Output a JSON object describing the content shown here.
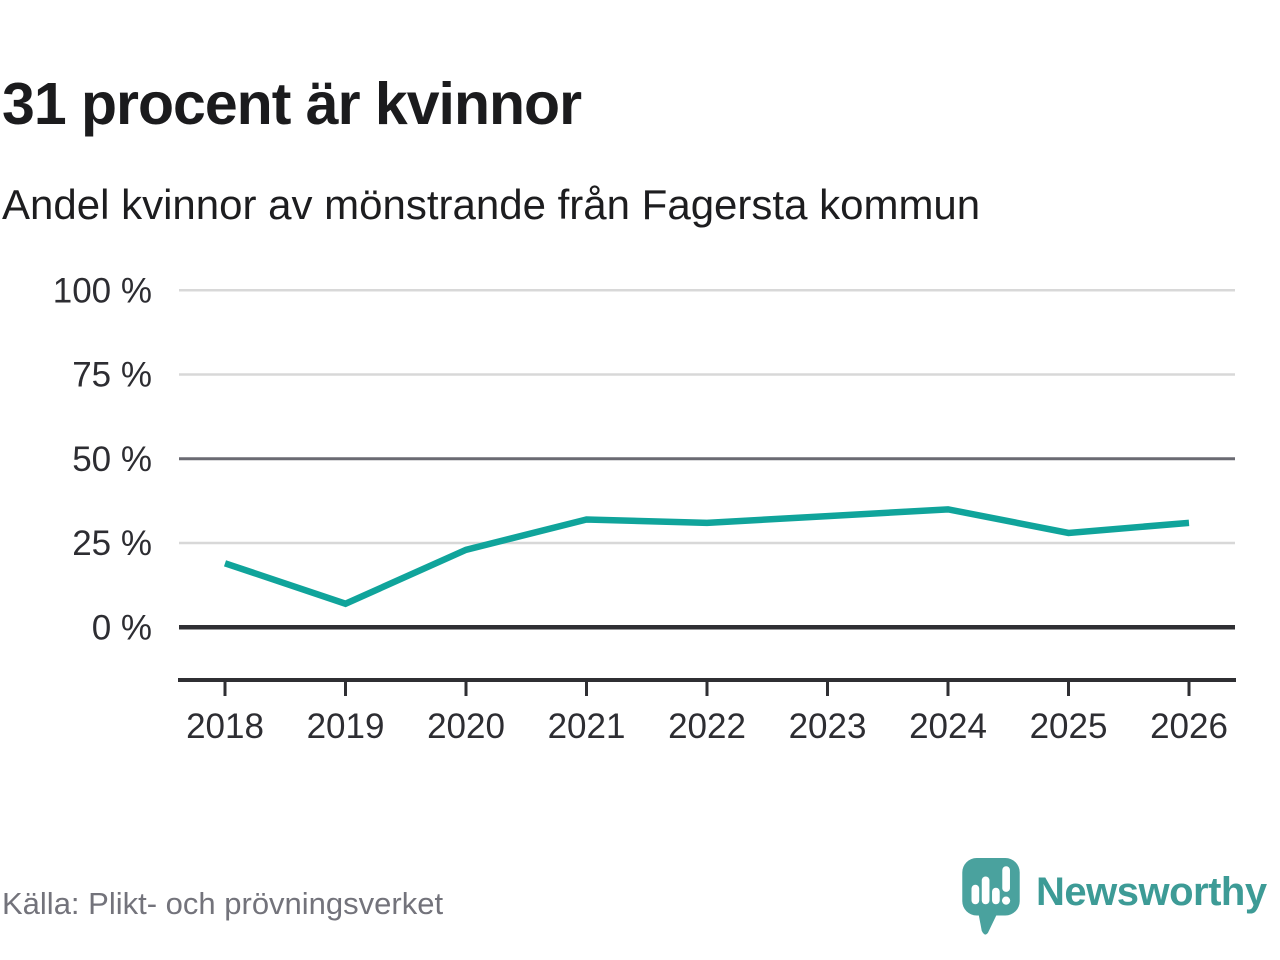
{
  "header": {
    "title": "31 procent är kvinnor",
    "subtitle": "Andel kvinnor av mönstrande från Fagersta kommun"
  },
  "chart_data": {
    "type": "line",
    "title": "31 procent är kvinnor",
    "subtitle": "Andel kvinnor av mönstrande från Fagersta kommun",
    "categories": [
      "2018",
      "2019",
      "2020",
      "2021",
      "2022",
      "2023",
      "2024",
      "2025",
      "2026"
    ],
    "series": [
      {
        "name": "Andel kvinnor av mönstrande",
        "values": [
          19,
          7,
          23,
          32,
          31,
          33,
          35,
          28,
          31
        ]
      }
    ],
    "xlabel": "",
    "ylabel": "",
    "ylim": [
      0,
      100
    ],
    "yticks": [
      0,
      25,
      50,
      75,
      100
    ],
    "ytick_labels": [
      "0 %",
      "25 %",
      "50 %",
      "75 %",
      "100 %"
    ],
    "grid": true,
    "legend": false,
    "line_color": "#10a49b",
    "grid_color_light": "#d8d8d8",
    "grid_color_mid": "#6a6a72",
    "zero_line_color": "#2f2f33",
    "axis_color": "#2f2f33",
    "tick_label_color": "#2d2d32"
  },
  "footer": {
    "source": "Källa: Plikt- och prövningsverket",
    "brand": "Newsworthy",
    "brand_color": "#3d9b96",
    "logo_icon": "newsworthy-speech-bubble-bar-chart-icon",
    "logo_icon_color": "#4aa29e"
  }
}
